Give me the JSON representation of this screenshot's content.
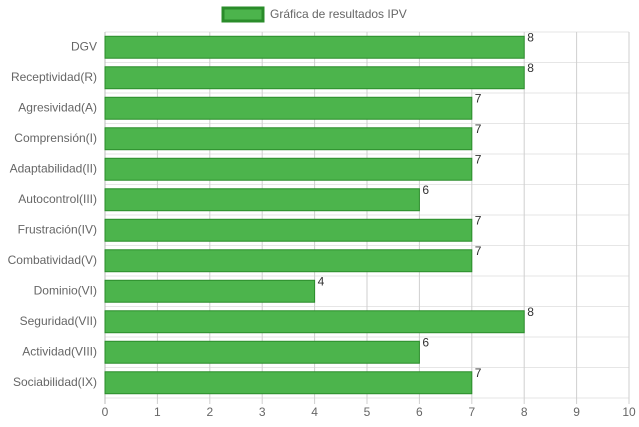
{
  "chart_data": {
    "type": "hbar",
    "categories": [
      "DGV",
      "Receptividad(R)",
      "Agresividad(A)",
      "Comprensión(I)",
      "Adaptabilidad(II)",
      "Autocontrol(III)",
      "Frustración(IV)",
      "Combatividad(V)",
      "Dominio(VI)",
      "Seguridad(VII)",
      "Actividad(VIII)",
      "Sociabilidad(IX)"
    ],
    "series": [
      {
        "name": "Gráfica de resultados IPV",
        "color": "#4cb44c",
        "border_color": "#2a8c2a",
        "values": [
          8,
          8,
          7,
          7,
          7,
          6,
          7,
          7,
          4,
          8,
          6,
          7
        ]
      }
    ],
    "xlim": [
      0,
      10
    ],
    "xticks": [
      0,
      1,
      2,
      3,
      4,
      5,
      6,
      7,
      8,
      9,
      10
    ],
    "grid": true,
    "legend": "top"
  }
}
